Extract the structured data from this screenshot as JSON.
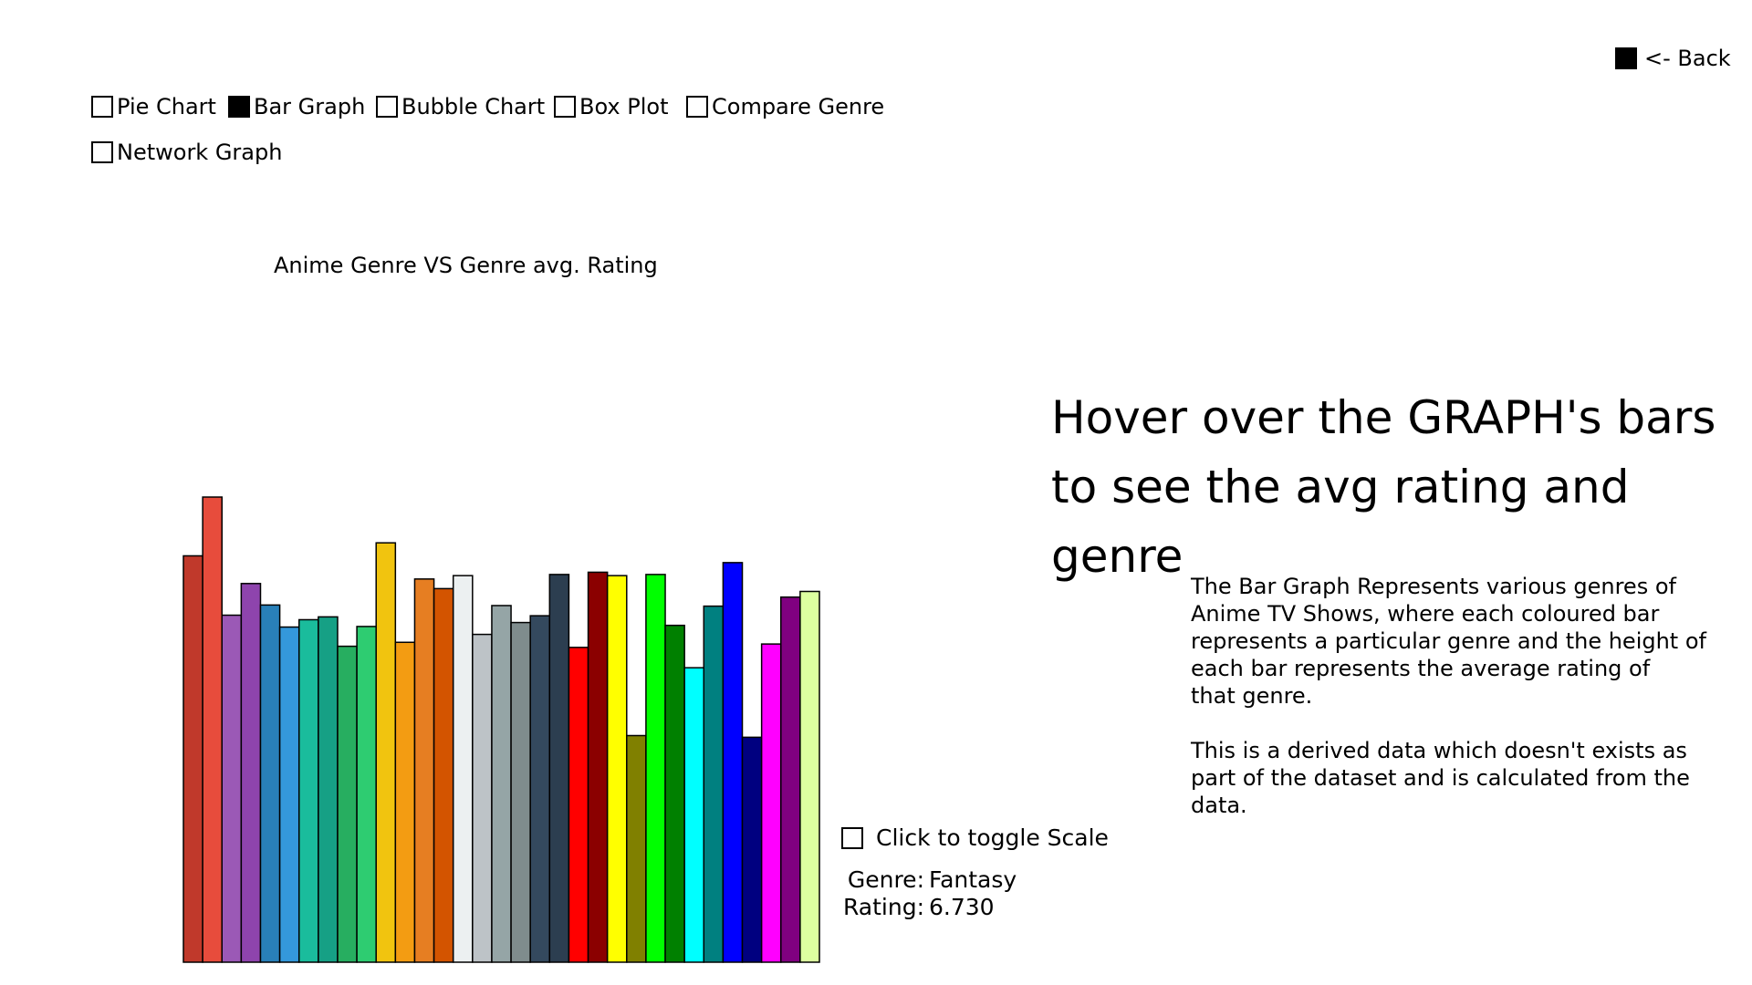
{
  "nav": {
    "back_label": "<- Back",
    "tabs": [
      {
        "label": "Pie Chart",
        "checked": false
      },
      {
        "label": "Bar Graph",
        "checked": true
      },
      {
        "label": "Bubble Chart",
        "checked": false
      },
      {
        "label": "Box Plot",
        "checked": false
      },
      {
        "label": "Compare Genre",
        "checked": false
      },
      {
        "label": "Network Graph",
        "checked": false
      }
    ]
  },
  "hover_hint": {
    "line1": "Hover over the GRAPH's bars",
    "line2": "to see the avg rating and genre"
  },
  "description": {
    "p1_lines": [
      "The Bar Graph Represents various genres of",
      "Anime TV Shows, where each coloured bar",
      "represents a particular genre and the height of",
      "each bar represents the average rating of",
      "that genre."
    ],
    "p2_lines": [
      "This is a derived data which doesn't exists as",
      "part of the dataset and is calculated from the data."
    ]
  },
  "scale_toggle": {
    "label": "Click to toggle Scale",
    "checked": false
  },
  "readout": {
    "genre_label": "Genre:",
    "genre_value": "Fantasy",
    "rating_label": "Rating:",
    "rating_value": "6.730"
  },
  "chart_data": {
    "type": "bar",
    "title": "Anime Genre VS Genre avg. Rating",
    "xlabel": "",
    "ylabel": "",
    "ylim": [
      0,
      8.23
    ],
    "grid": false,
    "legend": "none",
    "values": [
      7.19,
      8.23,
      6.14,
      6.7,
      6.32,
      5.93,
      6.06,
      6.11,
      5.59,
      5.94,
      7.42,
      5.66,
      6.78,
      6.61,
      6.84,
      5.8,
      6.31,
      6.01,
      6.13,
      6.86,
      5.57,
      6.9,
      6.84,
      4.01,
      6.86,
      5.96,
      5.21,
      6.3,
      7.07,
      3.98,
      5.63,
      6.46,
      6.56
    ],
    "colors": [
      "#c0392b",
      "#e74c3c",
      "#9b59b6",
      "#8e44ad",
      "#2980b9",
      "#3498db",
      "#1abc9c",
      "#16a085",
      "#27ae60",
      "#2ecc71",
      "#f1c40f",
      "#f39c12",
      "#e67e22",
      "#d35400",
      "#ecf0f1",
      "#bdc3c7",
      "#95a5a6",
      "#7f8c8d",
      "#34495e",
      "#2c3e50",
      "#ff0000",
      "#8b0000",
      "#ffff00",
      "#808000",
      "#00ff00",
      "#008000",
      "#00ffff",
      "#008080",
      "#0000ff",
      "#000080",
      "#ff00ff",
      "#800080",
      "#ddffa0"
    ]
  }
}
